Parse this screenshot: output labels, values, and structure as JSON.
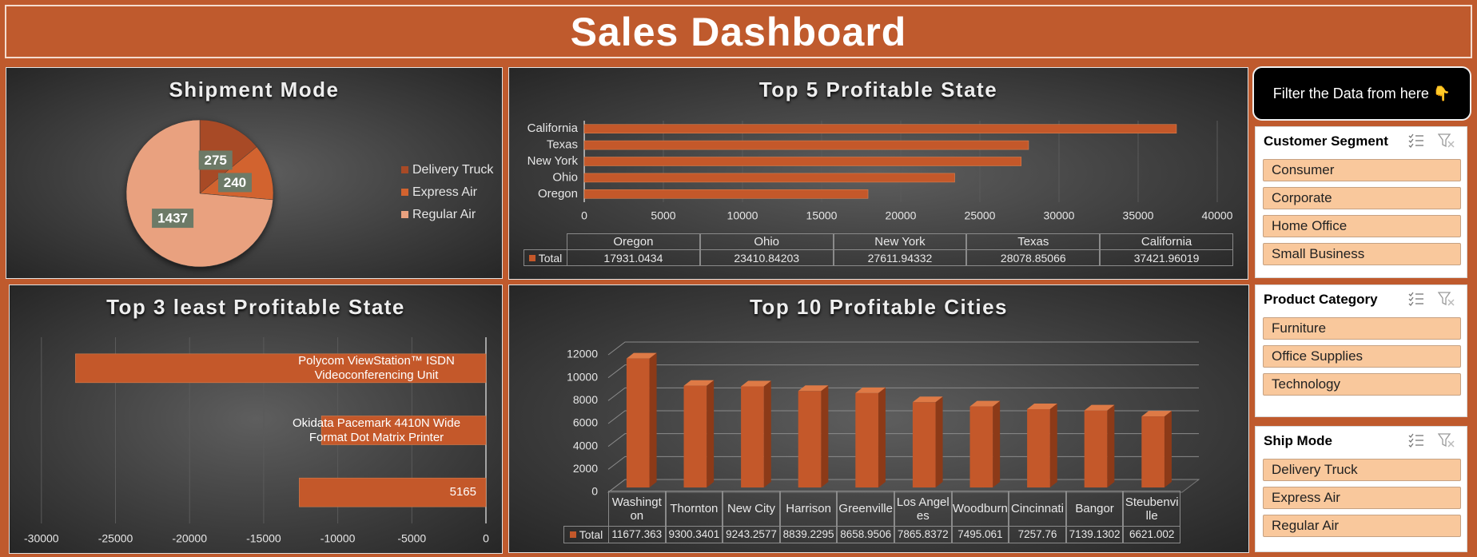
{
  "title": "Sales Dashboard",
  "filter_note": "Filter the Data from here 👇",
  "slicers": [
    {
      "title": "Customer Segment",
      "items": [
        "Consumer",
        "Corporate",
        "Home Office",
        "Small Business"
      ]
    },
    {
      "title": "Product Category",
      "items": [
        "Furniture",
        "Office Supplies",
        "Technology"
      ]
    },
    {
      "title": "Ship Mode",
      "items": [
        "Delivery Truck",
        "Express Air",
        "Regular Air"
      ]
    }
  ],
  "chart_data": [
    {
      "type": "pie",
      "title": "Shipment Mode",
      "categories": [
        "Delivery Truck",
        "Express Air",
        "Regular Air"
      ],
      "values": [
        275,
        240,
        1437
      ],
      "colors": [
        "#a84a26",
        "#d2632f",
        "#e9a17f"
      ],
      "legend": "right"
    },
    {
      "type": "barh",
      "title": "Top 5 Profitable State",
      "categories": [
        "Oregon",
        "Ohio",
        "New York",
        "Texas",
        "California"
      ],
      "series": [
        {
          "name": "Total",
          "color": "#c4582a",
          "values": [
            17931.0434,
            23410.84203,
            27611.94332,
            28078.85066,
            37421.96019
          ]
        }
      ],
      "xlim": [
        0,
        40000
      ],
      "xticks": [
        0,
        5000,
        10000,
        15000,
        20000,
        25000,
        30000,
        35000,
        40000
      ],
      "grid": true,
      "data_table": true
    },
    {
      "type": "barh",
      "title": "Top 3 least Profitable State",
      "categories": [
        "Polycom ViewStation™ ISDN Videoconferencing Unit",
        "Okidata Pacemark 4410N Wide Format Dot Matrix Printer",
        "5165"
      ],
      "values": [
        -27700,
        -11100,
        -12600
      ],
      "color": "#c4582a",
      "xlim": [
        -31500,
        0
      ],
      "xticks": [
        -30000,
        -25000,
        -20000,
        -15000,
        -10000,
        -5000,
        0
      ],
      "grid": true
    },
    {
      "type": "bar",
      "three_d": true,
      "title": "Top 10 Profitable Cities",
      "categories": [
        "Washington",
        "Thornton",
        "New City",
        "Harrison",
        "Greenville",
        "Los Angeles",
        "Woodburn",
        "Cincinnati",
        "Bangor",
        "Steubenville"
      ],
      "series": [
        {
          "name": "Total",
          "color": "#c4582a",
          "values": [
            11677.363,
            9300.3401,
            9243.2577,
            8839.2295,
            8658.9506,
            7865.8372,
            7495.061,
            7257.76,
            7139.1302,
            6621.002
          ]
        }
      ],
      "ylim": [
        0,
        12000
      ],
      "yticks": [
        0,
        2000,
        4000,
        6000,
        8000,
        10000,
        12000
      ],
      "grid": true,
      "data_table": true
    }
  ]
}
